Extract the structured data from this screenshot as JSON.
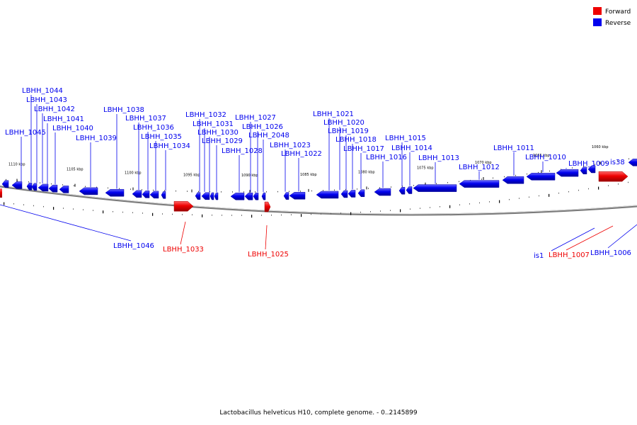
{
  "legend": [
    {
      "label": "Forward",
      "color": "#ee0000"
    },
    {
      "label": "Reverse",
      "color": "#0000ee"
    }
  ],
  "caption": "Lactobacillus helveticus H10, complete genome. - 0..2145899",
  "colors": {
    "forward": "#ee0000",
    "reverse": "#0000ee",
    "backbone": "#888888"
  },
  "scale_ticks": [
    "1110 kbp",
    "1105 kbp",
    "1100 kbp",
    "1095 kbp",
    "1090 kbp",
    "1085 kbp",
    "1080 kbp",
    "1075 kbp",
    "1070 kbp",
    "1065 kbp",
    "1060 kbp"
  ],
  "reverse_genes": [
    "LBHH_1045",
    "LBHH_1044",
    "LBHH_1043",
    "LBHH_1042",
    "LBHH_1041",
    "LBHH_1040",
    "LBHH_1039",
    "LBHH_1038",
    "LBHH_1037",
    "LBHH_1036",
    "LBHH_1035",
    "LBHH_1034",
    "LBHH_1032",
    "LBHH_1031",
    "LBHH_1030",
    "LBHH_1029",
    "LBHH_1028",
    "LBHH_1027",
    "LBHH_1026",
    "LBHH_2048",
    "LBHH_1023",
    "LBHH_1022",
    "LBHH_1021",
    "LBHH_1020",
    "LBHH_1019",
    "LBHH_1018",
    "LBHH_1017",
    "LBHH_1016",
    "LBHH_1015",
    "LBHH_1014",
    "LBHH_1013",
    "LBHH_1012",
    "LBHH_1011",
    "LBHH_1010",
    "LBHH_1009",
    "is38"
  ],
  "lower_labels": [
    "LBHH_1046",
    "LBHH_1033",
    "LBHH_1025",
    "is1",
    "LBHH_1007",
    "LBHH_1006"
  ],
  "forward_genes": [
    "LBHH_1033",
    "LBHH_1025",
    "LBHH_1007"
  ]
}
